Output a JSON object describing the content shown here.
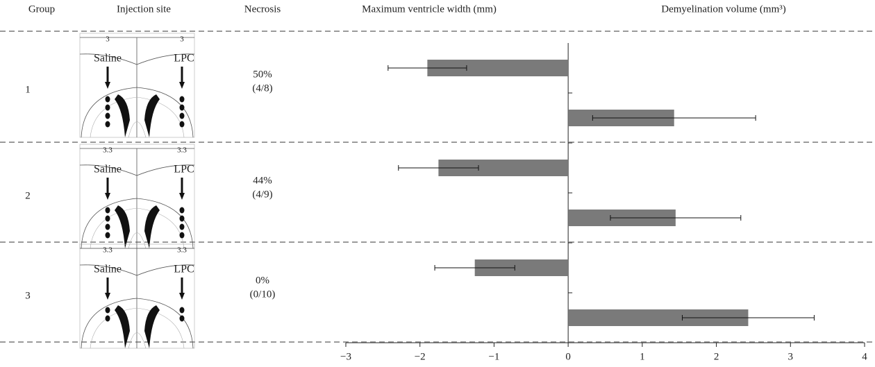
{
  "table": {
    "headers": [
      "Group",
      "Injection site",
      "Necrosis"
    ],
    "rows": [
      {
        "depth": "3",
        "left": "Saline",
        "right": "LPC",
        "necrosis": [
          "50%",
          "(4/8)"
        ]
      },
      {
        "depth": "3.3",
        "left": "Saline",
        "right": "LPC",
        "necrosis": [
          "44%",
          "(4/9)"
        ]
      },
      {
        "depth": "3.3",
        "left": "Saline",
        "right": "LPC",
        "necrosis": [
          "0%",
          "(0/10)"
        ]
      }
    ]
  },
  "chart_data": {
    "type": "bar",
    "orientation": "horizontal",
    "categories": [
      "1",
      "2",
      "3"
    ],
    "series": [
      {
        "name": "Maximum ventricle width (mm)",
        "color": "#7a7a7a",
        "values": [
          -1.9,
          -1.75,
          -1.26
        ],
        "errors": [
          0.53,
          0.54,
          0.54
        ]
      },
      {
        "name": "Demyelination volume (mm³)",
        "color": "#7a7a7a",
        "values": [
          1.43,
          1.45,
          2.43
        ],
        "errors": [
          1.1,
          0.88,
          0.89
        ]
      }
    ],
    "xlim": [
      -3,
      4
    ],
    "xticks": [
      {
        "value": -3,
        "label": "−3"
      },
      {
        "value": -2,
        "label": "−2"
      },
      {
        "value": -1,
        "label": "−1"
      },
      0,
      1,
      2,
      3,
      4
    ]
  }
}
